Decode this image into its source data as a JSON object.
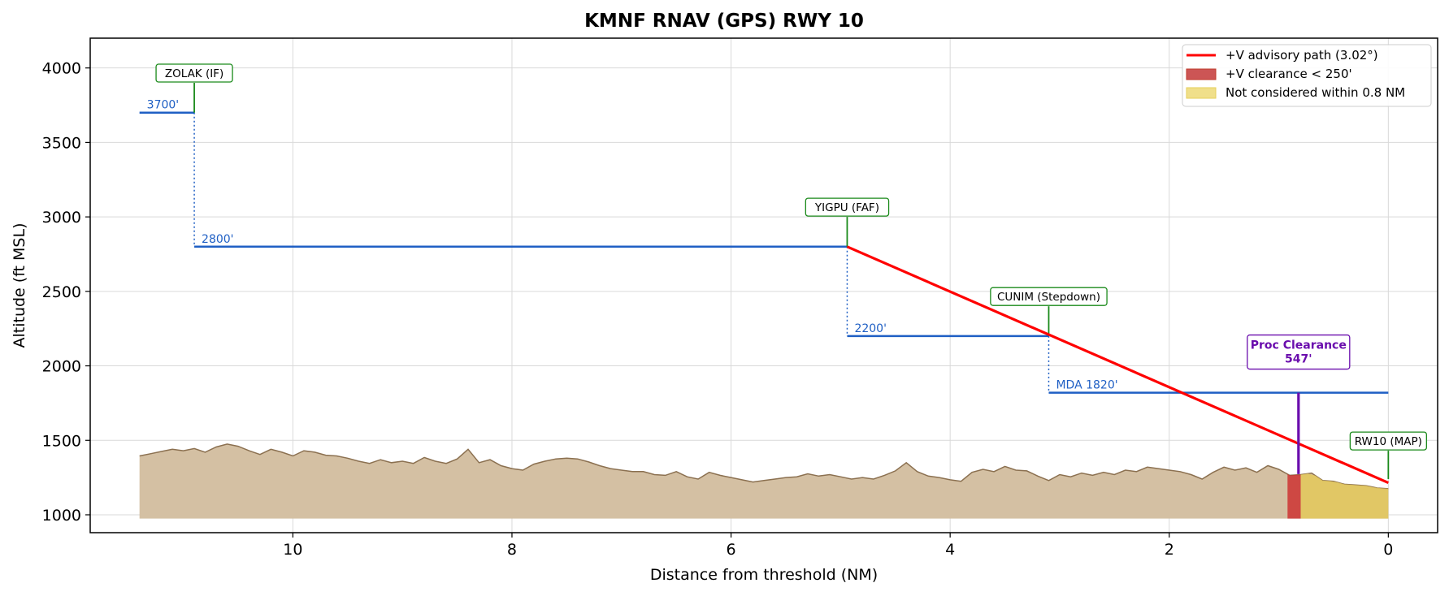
{
  "chart_data": {
    "type": "line",
    "title": "KMNF  RNAV (GPS) RWY 10",
    "xlabel": "Distance from threshold (NM)",
    "ylabel": "Altitude (ft MSL)",
    "xlim": [
      11.85,
      -0.45
    ],
    "ylim": [
      880,
      4200
    ],
    "x_inverted": true,
    "xticks": [
      10,
      8,
      6,
      4,
      2,
      0
    ],
    "yticks": [
      1000,
      1500,
      2000,
      2500,
      3000,
      3500,
      4000
    ],
    "grid": true,
    "legend_position": "top-right",
    "legend": [
      {
        "label": "+V advisory path (3.02°)",
        "kind": "line",
        "color": "#ff0000"
      },
      {
        "label": "+V clearance < 250'",
        "kind": "patch",
        "color": "#cc5555",
        "edge": "#c0392b"
      },
      {
        "label": "Not considered within 0.8 NM",
        "kind": "patch",
        "color": "#f0df8a",
        "edge": "#e6cf5a"
      }
    ],
    "advisory_path": {
      "name": "+V advisory path (3.02°)",
      "x": [
        4.94,
        0
      ],
      "y": [
        2800,
        1215
      ],
      "color": "#ff0000"
    },
    "altitude_segments": [
      {
        "label": "3700'",
        "x_start": 11.4,
        "x_end": 10.9,
        "altitude": 3700
      },
      {
        "label": "2800'",
        "x_start": 10.9,
        "x_end": 4.94,
        "altitude": 2800
      },
      {
        "label": "2200'",
        "x_start": 4.94,
        "x_end": 3.1,
        "altitude": 2200
      },
      {
        "label": "MDA 1820'",
        "x_start": 3.1,
        "x_end": 0,
        "altitude": 1820
      }
    ],
    "step_downs": [
      {
        "x": 10.9,
        "from": 3700,
        "to": 2800
      },
      {
        "x": 4.94,
        "from": 2800,
        "to": 2200
      },
      {
        "x": 3.1,
        "from": 2200,
        "to": 1820
      }
    ],
    "waypoints": [
      {
        "label": "ZOLAK (IF)",
        "x": 10.9,
        "y_base": 3700,
        "y_top": 3900
      },
      {
        "label": "YIGPU (FAF)",
        "x": 4.94,
        "y_base": 2800,
        "y_top": 3000
      },
      {
        "label": "CUNIM (Stepdown)",
        "x": 3.1,
        "y_base": 2200,
        "y_top": 2400
      },
      {
        "label": "RW10 (MAP)",
        "x": 0,
        "y_base": 1240,
        "y_top": 1430
      }
    ],
    "proc_clearance": {
      "title": "Proc Clearance",
      "value": "547'",
      "x": 0.82,
      "y_low": 1273,
      "y_high": 1820,
      "color": "#6a0dad"
    },
    "terrain": {
      "color": "#d4c0a3",
      "edge": "#8b7050",
      "base": 975,
      "x": [
        11.4,
        11.3,
        11.2,
        11.1,
        11.0,
        10.9,
        10.8,
        10.7,
        10.6,
        10.5,
        10.4,
        10.3,
        10.2,
        10.1,
        10.0,
        9.9,
        9.8,
        9.7,
        9.6,
        9.5,
        9.4,
        9.3,
        9.2,
        9.1,
        9.0,
        8.9,
        8.8,
        8.7,
        8.6,
        8.5,
        8.4,
        8.3,
        8.2,
        8.1,
        8.0,
        7.9,
        7.8,
        7.7,
        7.6,
        7.5,
        7.4,
        7.3,
        7.2,
        7.1,
        7.0,
        6.9,
        6.8,
        6.7,
        6.6,
        6.5,
        6.4,
        6.3,
        6.2,
        6.1,
        6.0,
        5.9,
        5.8,
        5.7,
        5.6,
        5.5,
        5.4,
        5.3,
        5.2,
        5.1,
        5.0,
        4.9,
        4.8,
        4.7,
        4.6,
        4.5,
        4.4,
        4.3,
        4.2,
        4.1,
        4.0,
        3.9,
        3.8,
        3.7,
        3.6,
        3.5,
        3.4,
        3.3,
        3.2,
        3.1,
        3.0,
        2.9,
        2.8,
        2.7,
        2.6,
        2.5,
        2.4,
        2.3,
        2.2,
        2.1,
        2.0,
        1.9,
        1.8,
        1.7,
        1.6,
        1.5,
        1.4,
        1.3,
        1.2,
        1.1,
        1.0,
        0.9,
        0.8,
        0.7,
        0.6,
        0.5,
        0.4,
        0.3,
        0.2,
        0.1,
        0.0
      ],
      "y": [
        1395,
        1410,
        1425,
        1440,
        1430,
        1445,
        1420,
        1455,
        1475,
        1460,
        1430,
        1405,
        1440,
        1420,
        1395,
        1430,
        1420,
        1400,
        1395,
        1380,
        1360,
        1345,
        1370,
        1350,
        1360,
        1345,
        1385,
        1360,
        1345,
        1375,
        1440,
        1350,
        1370,
        1330,
        1310,
        1300,
        1340,
        1360,
        1375,
        1380,
        1375,
        1355,
        1330,
        1310,
        1300,
        1290,
        1290,
        1270,
        1265,
        1290,
        1255,
        1240,
        1285,
        1265,
        1250,
        1235,
        1220,
        1230,
        1240,
        1250,
        1255,
        1275,
        1260,
        1270,
        1255,
        1240,
        1250,
        1240,
        1265,
        1295,
        1350,
        1290,
        1260,
        1250,
        1235,
        1225,
        1285,
        1305,
        1290,
        1325,
        1300,
        1295,
        1260,
        1230,
        1270,
        1255,
        1280,
        1265,
        1285,
        1270,
        1300,
        1290,
        1320,
        1310,
        1300,
        1290,
        1270,
        1240,
        1285,
        1320,
        1300,
        1315,
        1285,
        1330,
        1305,
        1265,
        1270,
        1280,
        1230,
        1225,
        1205,
        1200,
        1195,
        1180,
        1175
      ]
    },
    "red_zone": {
      "x_start": 0.92,
      "x_end": 0.8
    },
    "yellow_zone": {
      "x_start": 0.8,
      "x_end": 0
    }
  }
}
